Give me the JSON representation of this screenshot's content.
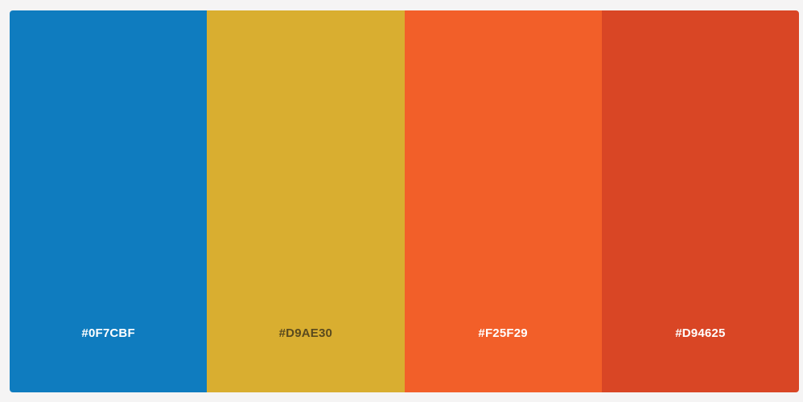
{
  "palette": {
    "swatches": [
      {
        "hex_label": "#0F7CBF",
        "color": "#0F7CBF",
        "text_color": "#FFFFFF"
      },
      {
        "hex_label": "#D9AE30",
        "color": "#D9AE30",
        "text_color": "#5A4A1E"
      },
      {
        "hex_label": "#F25F29",
        "color": "#F25F29",
        "text_color": "#FFFFFF"
      },
      {
        "hex_label": "#D94625",
        "color": "#D94625",
        "text_color": "#FFFFFF"
      }
    ]
  }
}
